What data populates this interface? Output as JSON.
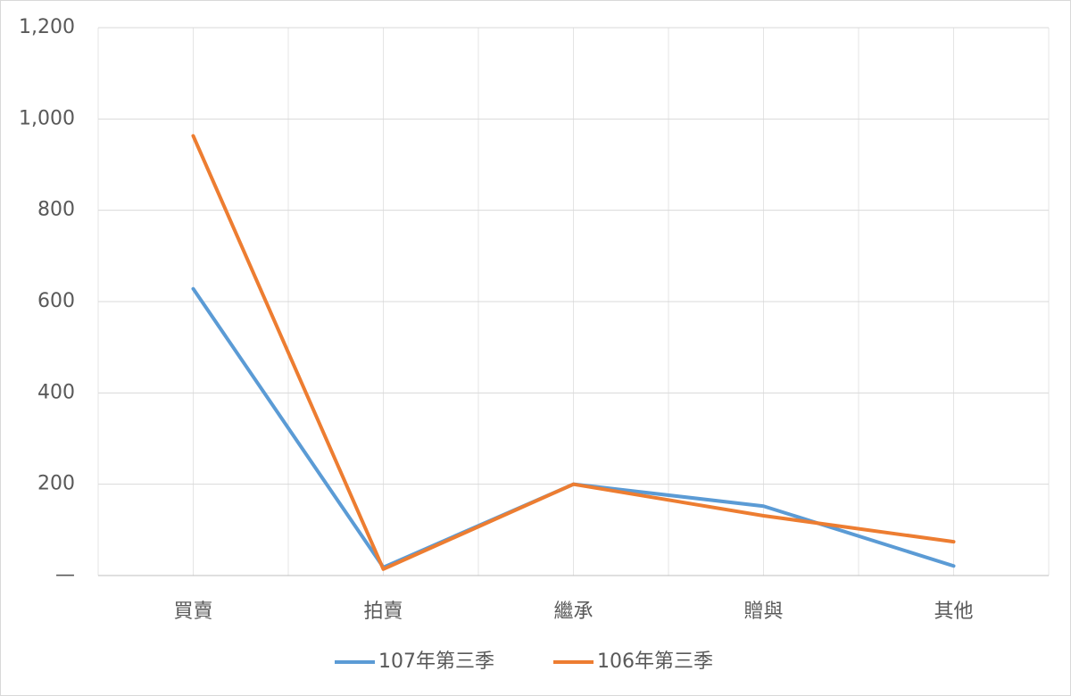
{
  "chart_data": {
    "type": "line",
    "categories": [
      "買賣",
      "拍賣",
      "繼承",
      "贈與",
      "其他"
    ],
    "series": [
      {
        "name": "107年第三季",
        "color": "#5b9bd5",
        "values": [
          628,
          18,
          200,
          152,
          21
        ]
      },
      {
        "name": "106年第三季",
        "color": "#ed7d31",
        "values": [
          963,
          14,
          200,
          131,
          74
        ]
      }
    ],
    "ylim": [
      0,
      1200
    ],
    "yticks": [
      {
        "value": 0,
        "label": "—"
      },
      200,
      400,
      600,
      800,
      {
        "value": 1000,
        "label": "1,000"
      },
      {
        "value": 1200,
        "label": "1,200"
      }
    ],
    "grid": true,
    "legend": "bottom"
  }
}
